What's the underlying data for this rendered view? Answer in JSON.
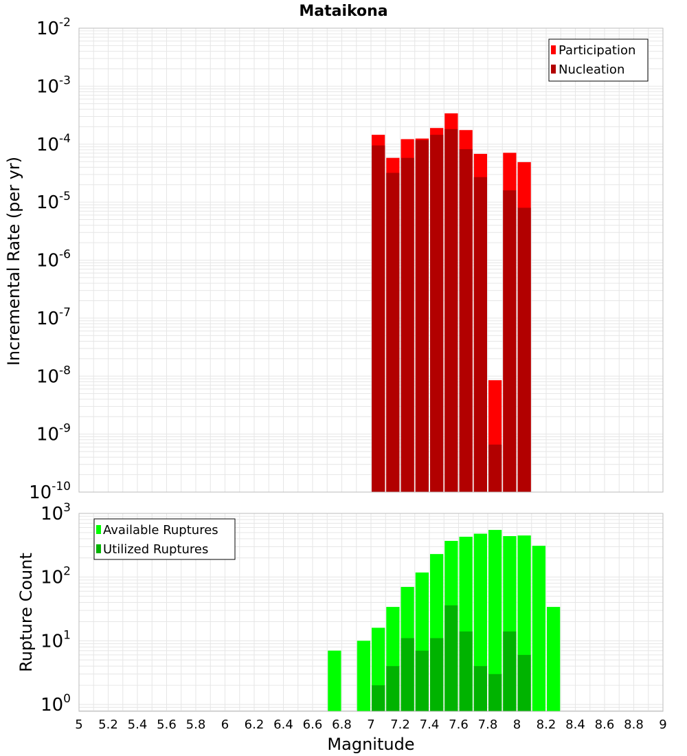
{
  "title": "Mataikona",
  "xlabel": "Magnitude",
  "x_ticks": [
    "5",
    "5.2",
    "5.4",
    "5.6",
    "5.8",
    "6",
    "6.2",
    "6.4",
    "6.6",
    "6.8",
    "7",
    "7.2",
    "7.4",
    "7.6",
    "7.8",
    "8",
    "8.2",
    "8.4",
    "8.6",
    "8.8",
    "9"
  ],
  "colors": {
    "participation": "#ff0000",
    "nucleation": "#b20000",
    "available": "#00ff00",
    "utilized": "#00b300",
    "grid": "#e6e6e6",
    "frame": "#bbbbbb"
  },
  "chart_data": [
    {
      "type": "bar",
      "title": "Mataikona",
      "xlabel": "Magnitude",
      "ylabel": "Incremental Rate (per yr)",
      "xlim": [
        5,
        9
      ],
      "ylim": [
        1e-10,
        0.01
      ],
      "y_scale": "log",
      "bin_width": 0.1,
      "y_ticks": [
        {
          "base": "10",
          "exp": "-10",
          "value": 1e-10
        },
        {
          "base": "10",
          "exp": "-9",
          "value": 1e-09
        },
        {
          "base": "10",
          "exp": "-8",
          "value": 1e-08
        },
        {
          "base": "10",
          "exp": "-7",
          "value": 1e-07
        },
        {
          "base": "10",
          "exp": "-6",
          "value": 1e-06
        },
        {
          "base": "10",
          "exp": "-5",
          "value": 1e-05
        },
        {
          "base": "10",
          "exp": "-4",
          "value": 0.0001
        },
        {
          "base": "10",
          "exp": "-3",
          "value": 0.001
        },
        {
          "base": "10",
          "exp": "-2",
          "value": 0.01
        }
      ],
      "legend_position": "top-right",
      "x": [
        7.05,
        7.15,
        7.25,
        7.35,
        7.45,
        7.55,
        7.65,
        7.75,
        7.85,
        7.95,
        8.05
      ],
      "series": [
        {
          "name": "Participation",
          "values": [
            0.000145,
            5.8e-05,
            0.000122,
            0.000125,
            0.00019,
            0.00034,
            0.000175,
            6.8e-05,
            8.5e-09,
            7.1e-05,
            4.9e-05
          ]
        },
        {
          "name": "Nucleation",
          "values": [
            9.5e-05,
            3.2e-05,
            5.8e-05,
            0.000118,
            0.000145,
            0.000182,
            8.2e-05,
            2.7e-05,
            6.6e-10,
            1.6e-05,
            8e-06
          ]
        }
      ]
    },
    {
      "type": "bar",
      "xlabel": "Magnitude",
      "ylabel": "Rupture Count",
      "xlim": [
        5,
        9
      ],
      "ylim": [
        0.78,
        1000
      ],
      "y_scale": "log",
      "bin_width": 0.1,
      "y_ticks": [
        {
          "base": "10",
          "exp": "0",
          "value": 1
        },
        {
          "base": "10",
          "exp": "1",
          "value": 10
        },
        {
          "base": "10",
          "exp": "2",
          "value": 100
        },
        {
          "base": "10",
          "exp": "3",
          "value": 1000
        }
      ],
      "legend_position": "top-left",
      "x": [
        6.75,
        6.95,
        7.05,
        7.15,
        7.25,
        7.35,
        7.45,
        7.55,
        7.65,
        7.75,
        7.85,
        7.95,
        8.05,
        8.15,
        8.25
      ],
      "series": [
        {
          "name": "Available Ruptures",
          "values": [
            7,
            10,
            16,
            34,
            70,
            118,
            230,
            370,
            430,
            480,
            550,
            440,
            450,
            310,
            34
          ]
        },
        {
          "name": "Utilized Ruptures",
          "values": [
            0,
            0,
            2,
            4,
            11,
            7,
            11,
            36,
            14,
            4,
            3,
            14,
            6,
            0,
            0
          ]
        }
      ]
    }
  ]
}
